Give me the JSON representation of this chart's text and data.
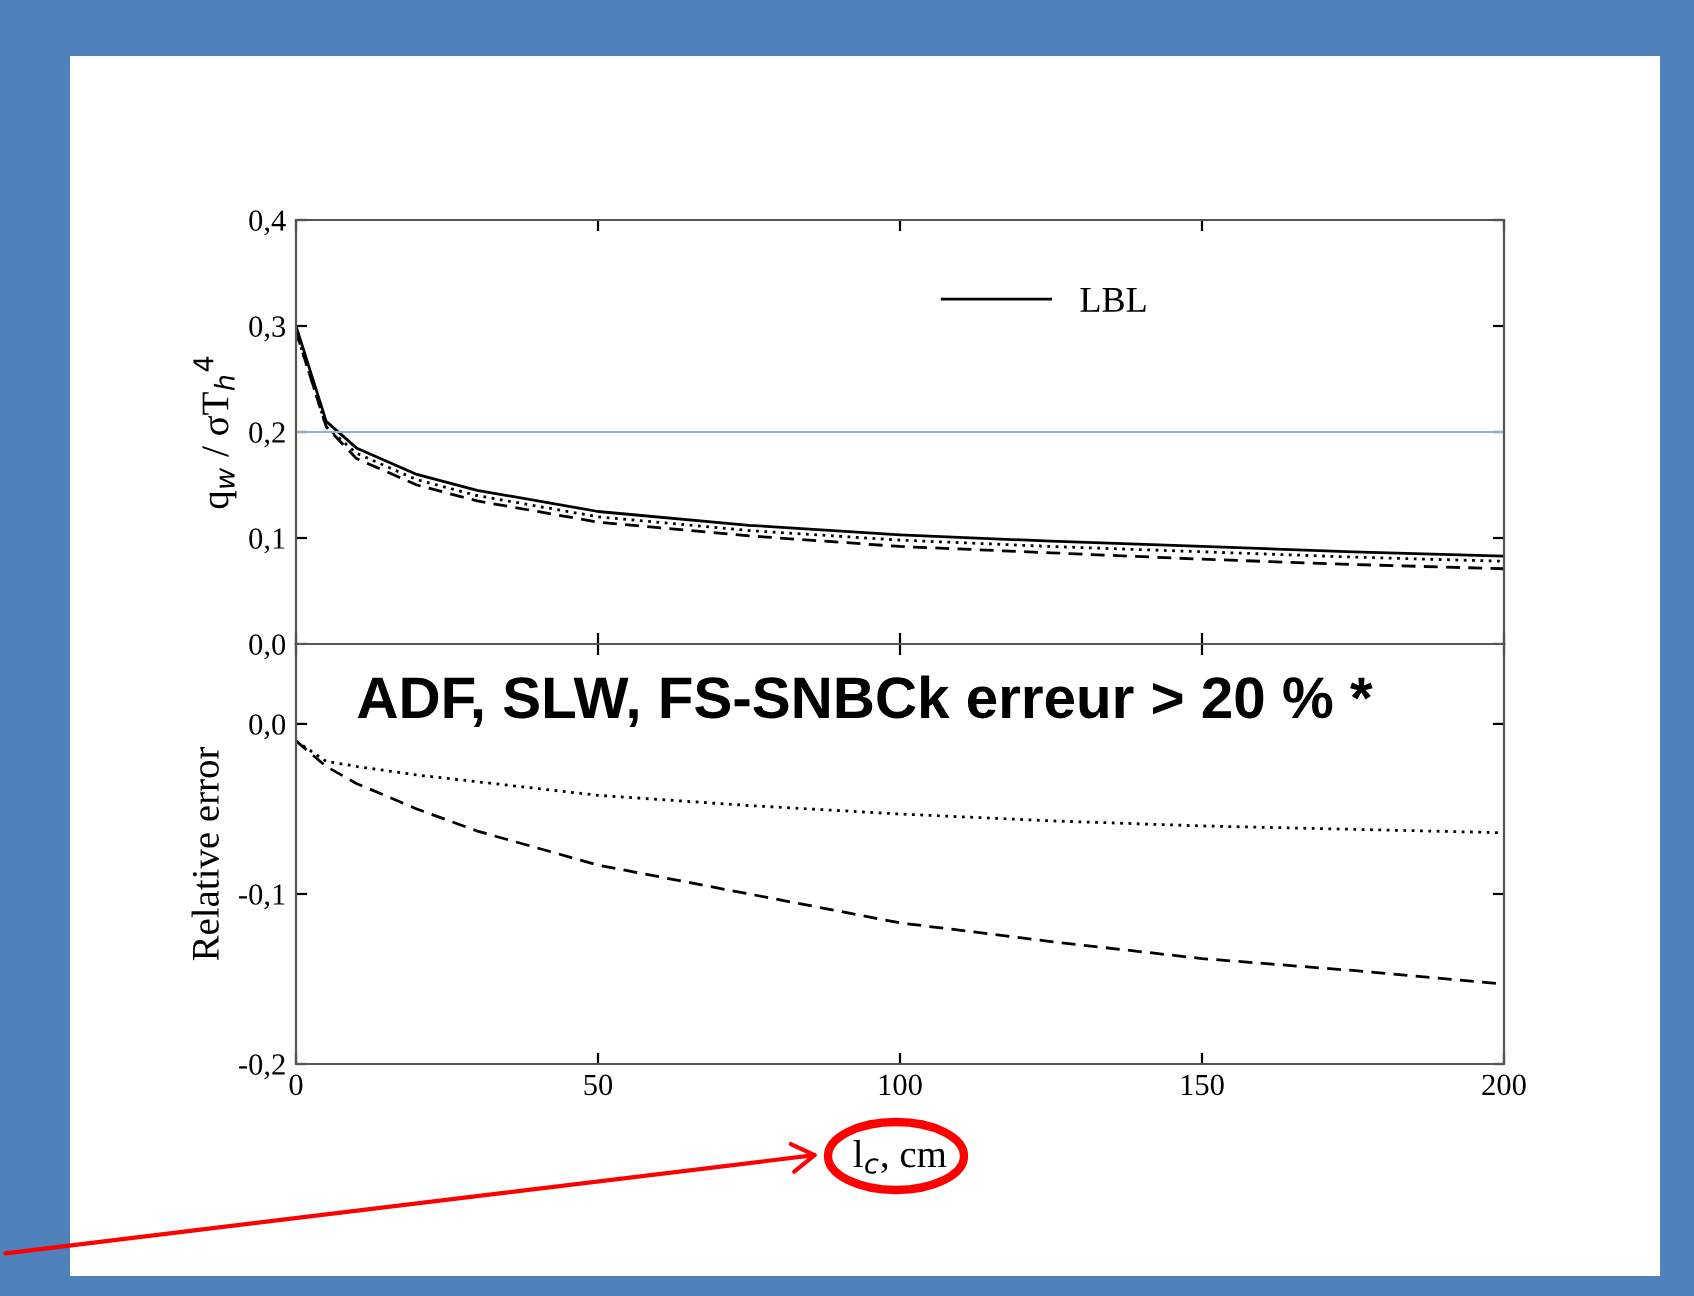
{
  "chart_data": [
    {
      "type": "line",
      "x": [
        0,
        5,
        10,
        20,
        30,
        50,
        75,
        100,
        125,
        150,
        175,
        200
      ],
      "ylabel": "q$_{w}$ / σT$_{h}$$^{4}$",
      "series": [
        {
          "name": "LBL",
          "color": "#000000",
          "line_style": "solid",
          "values": [
            0.3,
            0.21,
            0.185,
            0.16,
            0.145,
            0.125,
            0.112,
            0.103,
            0.097,
            0.092,
            0.087,
            0.083
          ]
        },
        {
          "color": "#000000",
          "line_style": "dotted",
          "values": [
            0.295,
            0.205,
            0.18,
            0.155,
            0.14,
            0.12,
            0.107,
            0.098,
            0.092,
            0.087,
            0.082,
            0.078
          ]
        },
        {
          "color": "#000000",
          "line_style": "dashed",
          "values": [
            0.295,
            0.205,
            0.175,
            0.15,
            0.135,
            0.115,
            0.102,
            0.092,
            0.086,
            0.08,
            0.075,
            0.071
          ]
        }
      ],
      "xlim": [
        0,
        200
      ],
      "xticks": [
        0,
        50,
        100,
        150,
        200
      ],
      "ylim": [
        0,
        0.4
      ],
      "yticks": [
        {
          "value": 0,
          "label": "0,0"
        },
        {
          "value": 0.1,
          "label": "0,1"
        },
        {
          "value": 0.2,
          "label": "0,2"
        },
        {
          "value": 0.3,
          "label": "0,3"
        },
        {
          "value": 0.4,
          "label": "0,4"
        }
      ],
      "ref_lines": [
        {
          "axis": "y",
          "value": 0.2,
          "color": "#8fb0d0"
        }
      ],
      "tick_labels": "y",
      "legend": "top",
      "grid": false
    },
    {
      "type": "line",
      "x": [
        0,
        5,
        10,
        20,
        30,
        50,
        75,
        100,
        125,
        150,
        175,
        200
      ],
      "xlabel": "l$_{c}$, cm",
      "ylabel": "Relative error",
      "series": [
        {
          "color": "#000000",
          "line_style": "dotted",
          "values": [
            -0.01,
            -0.022,
            -0.025,
            -0.03,
            -0.034,
            -0.042,
            -0.048,
            -0.053,
            -0.057,
            -0.06,
            -0.062,
            -0.064
          ]
        },
        {
          "color": "#000000",
          "line_style": "dashed",
          "values": [
            -0.01,
            -0.025,
            -0.035,
            -0.05,
            -0.063,
            -0.083,
            -0.1,
            -0.117,
            -0.128,
            -0.138,
            -0.145,
            -0.153
          ]
        }
      ],
      "xlim": [
        0,
        200
      ],
      "xticks": [
        0,
        50,
        100,
        150,
        200
      ],
      "ylim": [
        -0.2,
        0.047
      ],
      "yticks": [
        {
          "value": -0.2,
          "label": "-0,2"
        },
        {
          "value": -0.1,
          "label": "-0,1"
        },
        {
          "value": 0,
          "label": "0,0"
        }
      ],
      "annotations": [
        "ADF, SLW, FS-SNBCk erreur > 20 % *"
      ],
      "grid": false
    }
  ]
}
